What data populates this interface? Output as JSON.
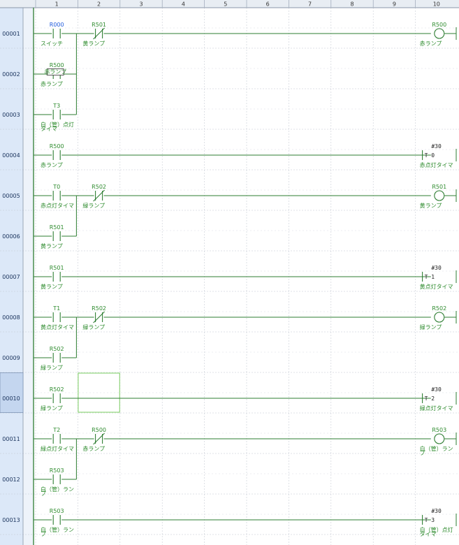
{
  "columns": [
    "1",
    "2",
    "3",
    "4",
    "5",
    "6",
    "7",
    "8",
    "9",
    "10"
  ],
  "colors": {
    "wire": "#2e7d32",
    "label": "#2e8b2e",
    "accent": "#1e5adc",
    "row_no_bg": "#dce8f8"
  },
  "rows": [
    {
      "no": "00001",
      "elements": [
        {
          "col": 1,
          "type": "no-contact",
          "addr": "R000",
          "addr_color": "blue",
          "comment": "スイッチ"
        },
        {
          "col": 2,
          "type": "nc-contact",
          "addr": "R501",
          "comment": "黄ランプ"
        },
        {
          "col": 10,
          "type": "coil",
          "addr": "R500",
          "comment": "赤ランプ"
        }
      ],
      "wire_to_coil": true
    },
    {
      "no": "00002",
      "elements": [
        {
          "col": 1,
          "type": "no-contact",
          "addr": "R500",
          "comment": "赤ランプ",
          "tag": "赤ランプ"
        }
      ],
      "branch_up": true
    },
    {
      "no": "00003",
      "elements": [
        {
          "col": 1,
          "type": "no-contact",
          "addr": "T3",
          "comment": "白（管）点灯",
          "comment2": "タイマ"
        }
      ],
      "branch_up": true
    },
    {
      "no": "00004",
      "elements": [
        {
          "col": 1,
          "type": "no-contact",
          "addr": "R500",
          "comment": "赤ランプ"
        },
        {
          "col": 10,
          "type": "timer",
          "timer": "T 0",
          "preset": "#30",
          "comment": "赤点灯タイマ"
        }
      ],
      "wire_to_coil": true
    },
    {
      "no": "00005",
      "elements": [
        {
          "col": 1,
          "type": "no-contact",
          "addr": "T0",
          "comment": "赤点灯タイマ"
        },
        {
          "col": 2,
          "type": "nc-contact",
          "addr": "R502",
          "comment": "緑ランプ"
        },
        {
          "col": 10,
          "type": "coil",
          "addr": "R501",
          "comment": "黄ランプ"
        }
      ],
      "wire_to_coil": true
    },
    {
      "no": "00006",
      "elements": [
        {
          "col": 1,
          "type": "no-contact",
          "addr": "R501",
          "comment": "黄ランプ"
        }
      ],
      "branch_up": true
    },
    {
      "no": "00007",
      "elements": [
        {
          "col": 1,
          "type": "no-contact",
          "addr": "R501",
          "comment": "黄ランプ"
        },
        {
          "col": 10,
          "type": "timer",
          "timer": "T 1",
          "preset": "#30",
          "comment": "黄点灯タイマ"
        }
      ],
      "wire_to_coil": true
    },
    {
      "no": "00008",
      "elements": [
        {
          "col": 1,
          "type": "no-contact",
          "addr": "T1",
          "comment": "黄点灯タイマ"
        },
        {
          "col": 2,
          "type": "nc-contact",
          "addr": "R502",
          "comment": "緑ランプ"
        },
        {
          "col": 10,
          "type": "coil",
          "addr": "R502",
          "comment": "緑ランプ"
        }
      ],
      "wire_to_coil": true
    },
    {
      "no": "00009",
      "elements": [
        {
          "col": 1,
          "type": "no-contact",
          "addr": "R502",
          "comment": "緑ランプ"
        }
      ],
      "branch_up": true
    },
    {
      "no": "00010",
      "selected": true,
      "elements": [
        {
          "col": 1,
          "type": "no-contact",
          "addr": "R502",
          "comment": "緑ランプ"
        },
        {
          "col": 10,
          "type": "timer",
          "timer": "T 2",
          "preset": "#30",
          "comment": "緑点灯タイマ"
        }
      ],
      "wire_to_coil": true
    },
    {
      "no": "00011",
      "elements": [
        {
          "col": 1,
          "type": "no-contact",
          "addr": "T2",
          "comment": "緑点灯タイマ"
        },
        {
          "col": 2,
          "type": "nc-contact",
          "addr": "R500",
          "comment": "赤ランプ"
        },
        {
          "col": 10,
          "type": "coil",
          "addr": "R503",
          "comment": "白（管）ラン",
          "comment2": "プ"
        }
      ],
      "wire_to_coil": true
    },
    {
      "no": "00012",
      "elements": [
        {
          "col": 1,
          "type": "no-contact",
          "addr": "R503",
          "comment": "白（管）ラン",
          "comment2": "プ"
        }
      ],
      "branch_up": true
    },
    {
      "no": "00013",
      "elements": [
        {
          "col": 1,
          "type": "no-contact",
          "addr": "R503",
          "comment": "白（管）ラン",
          "comment2": "プ"
        },
        {
          "col": 10,
          "type": "timer",
          "timer": "T 3",
          "preset": "#30",
          "comment": "白（管）点灯",
          "comment2": "タイマ"
        }
      ],
      "wire_to_coil": true
    }
  ]
}
